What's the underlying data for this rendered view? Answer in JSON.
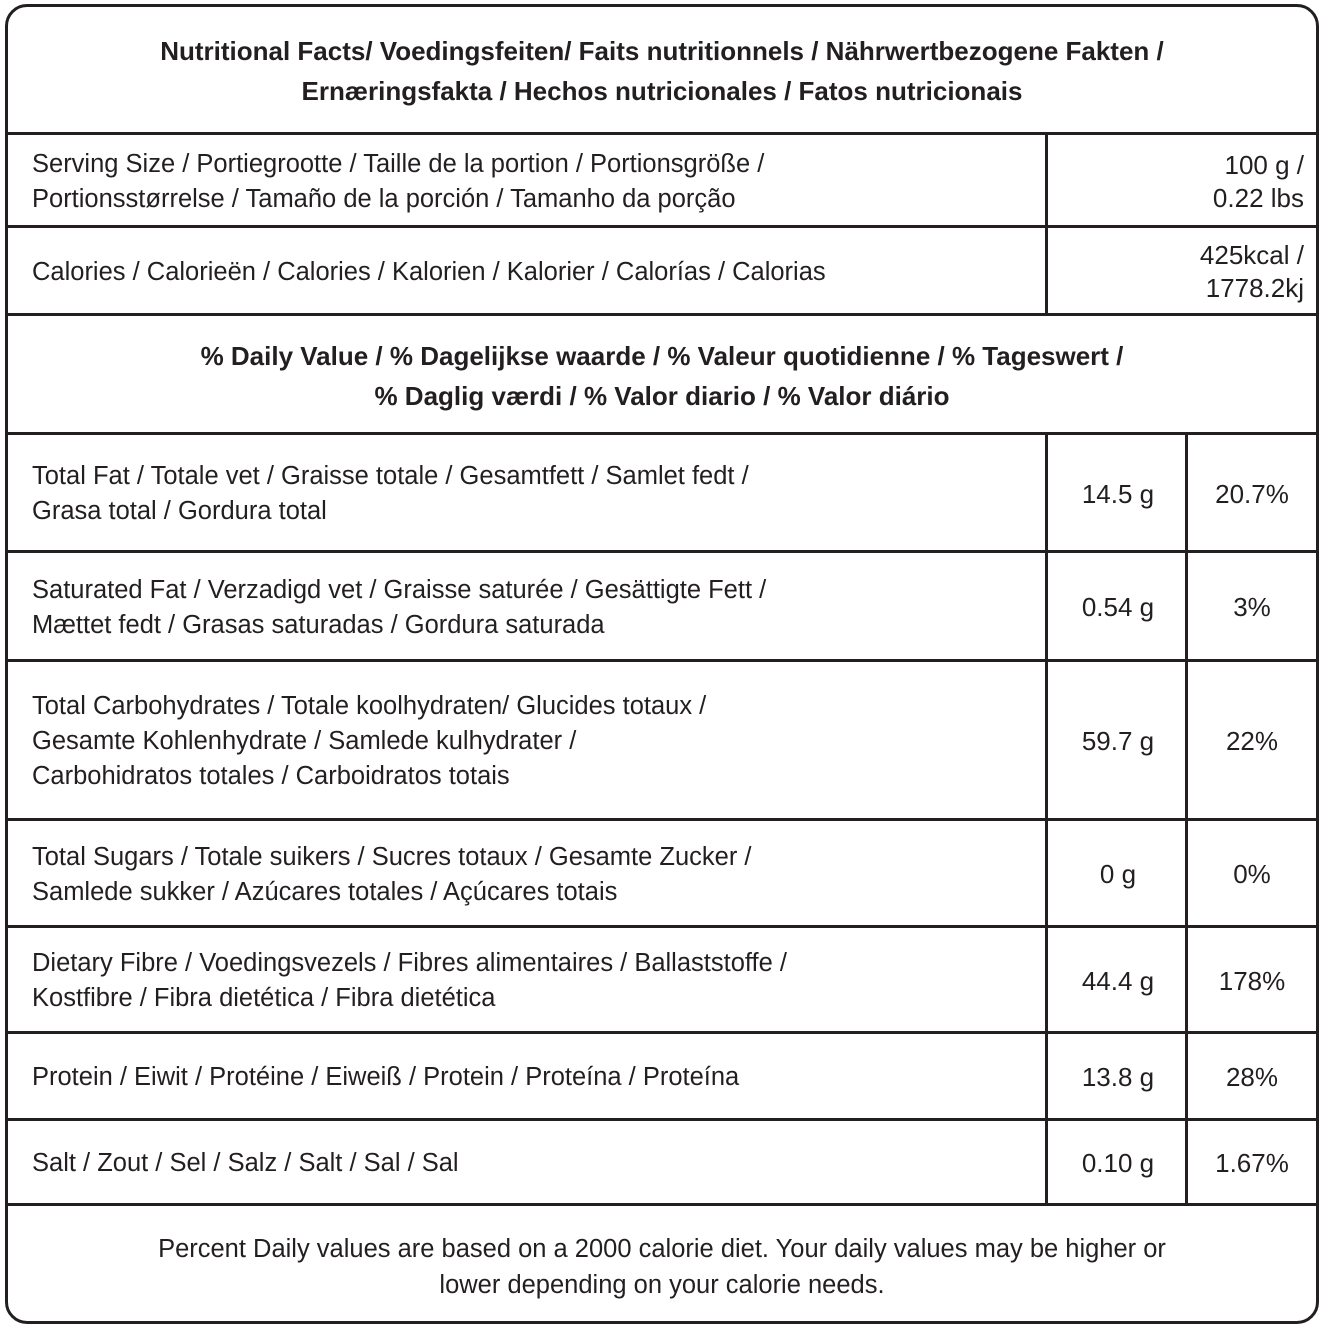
{
  "title": {
    "lines": [
      "Nutritional Facts/ Voedingsfeiten/ Faits nutritionnels / Nährwertbezogene Fakten /",
      "Ernæringsfakta / Hechos nutricionales / Fatos nutricionais"
    ]
  },
  "serving": {
    "label": [
      "Serving Size / Portiegrootte / Taille de la portion / Portionsgröße /",
      "Portionsstørrelse / Tamaño de la porción / Tamanho da porção"
    ],
    "value": [
      "100 g /",
      "0.22 lbs"
    ]
  },
  "calories": {
    "label": [
      "Calories / Calorieën / Calories / Kalorien / Kalorier / Calorías / Calorias"
    ],
    "value": [
      "425kcal /",
      "1778.2kj"
    ]
  },
  "daily_value_header": {
    "lines": [
      "% Daily Value / % Dagelijkse waarde / % Valeur quotidienne / % Tageswert /",
      "% Daglig værdi / % Valor diario / % Valor diário"
    ]
  },
  "nutrients": [
    {
      "label": [
        "Total Fat / Totale vet / Graisse totale / Gesamtfett / Samlet fedt /",
        "Grasa total / Gordura total"
      ],
      "amount": "14.5 g",
      "percent": "20.7%"
    },
    {
      "label": [
        "Saturated Fat / Verzadigd vet / Graisse saturée / Gesättigte Fett /",
        "Mættet fedt / Grasas saturadas / Gordura saturada"
      ],
      "amount": "0.54 g",
      "percent": "3%"
    },
    {
      "label": [
        "Total Carbohydrates / Totale koolhydraten/ Glucides totaux /",
        "Gesamte Kohlenhydrate / Samlede kulhydrater /",
        "Carbohidratos totales / Carboidratos totais"
      ],
      "amount": "59.7 g",
      "percent": "22%"
    },
    {
      "label": [
        "Total Sugars / Totale suikers / Sucres totaux / Gesamte Zucker /",
        "Samlede sukker / Azúcares totales / Açúcares totais"
      ],
      "amount": "0 g",
      "percent": "0%"
    },
    {
      "label": [
        "Dietary Fibre / Voedingsvezels / Fibres alimentaires / Ballaststoffe /",
        "Kostfibre / Fibra dietética / Fibra dietética"
      ],
      "amount": "44.4 g",
      "percent": "178%"
    },
    {
      "label": [
        "Protein / Eiwit / Protéine / Eiweiß / Protein / Proteína / Proteína"
      ],
      "amount": "13.8 g",
      "percent": "28%"
    },
    {
      "label": [
        "Salt / Zout / Sel / Salz / Salt / Sal / Sal"
      ],
      "amount": "0.10 g",
      "percent": "1.67%"
    }
  ],
  "footer": {
    "lines": [
      "Percent Daily values are based on a 2000 calorie diet. Your daily values may be higher or",
      "lower depending on your calorie needs."
    ]
  }
}
